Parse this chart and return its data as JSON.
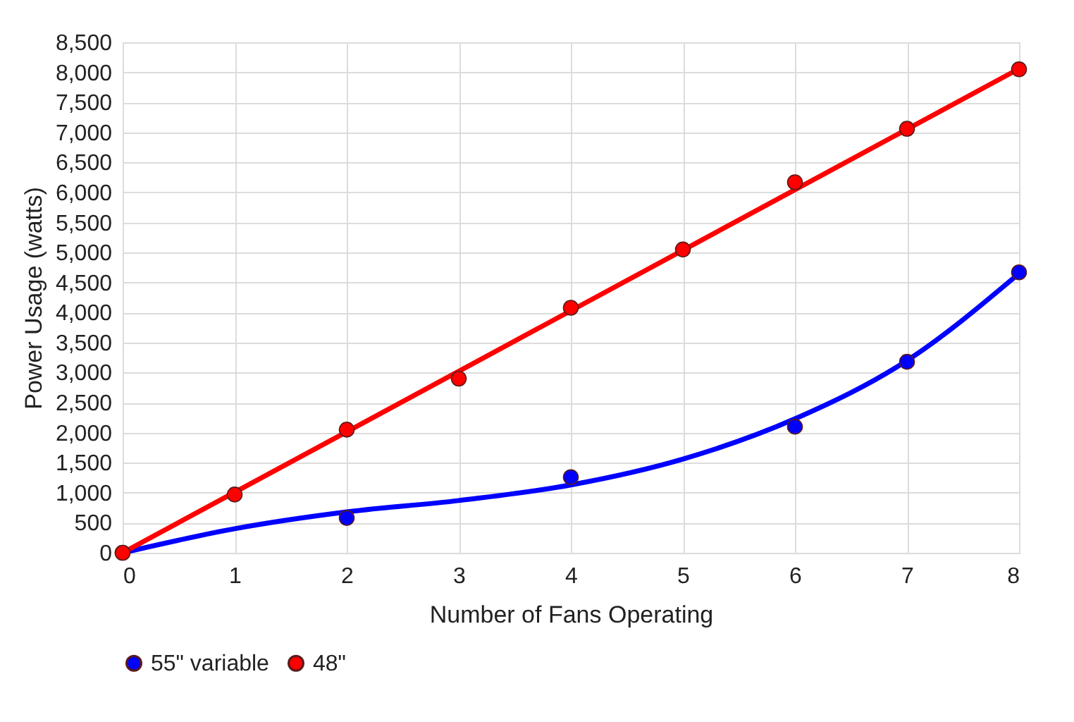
{
  "chart_data": {
    "type": "scatter",
    "xlabel": "Number of Fans Operating",
    "ylabel": "Power Usage (watts)",
    "xlim": [
      0,
      8
    ],
    "xticks": [
      0,
      1,
      2,
      3,
      4,
      5,
      6,
      7,
      8
    ],
    "ylim": [
      0,
      8500
    ],
    "yticks": [
      0,
      500,
      {
        "value": 1000,
        "label": "1,000"
      },
      {
        "value": 1500,
        "label": "1,500"
      },
      {
        "value": 2000,
        "label": "2,000"
      },
      {
        "value": 2500,
        "label": "2,500"
      },
      {
        "value": 3000,
        "label": "3,000"
      },
      {
        "value": 3500,
        "label": "3,500"
      },
      {
        "value": 4000,
        "label": "4,000"
      },
      {
        "value": 4500,
        "label": "4,500"
      },
      {
        "value": 5000,
        "label": "5,000"
      },
      {
        "value": 5500,
        "label": "5,500"
      },
      {
        "value": 6000,
        "label": "6,000"
      },
      {
        "value": 6500,
        "label": "6,500"
      },
      {
        "value": 7000,
        "label": "7,000"
      },
      {
        "value": 7500,
        "label": "7,500"
      },
      {
        "value": 8000,
        "label": "8,000"
      },
      {
        "value": 8500,
        "label": "8,500"
      }
    ],
    "grid": true,
    "legend": "bottom",
    "marker": "circle",
    "series": [
      {
        "type": "line",
        "marker": "none",
        "color": "#0000ff",
        "x": [
          0,
          1,
          2,
          3,
          4,
          5,
          6,
          7,
          8
        ],
        "values": [
          0,
          400,
          680,
          870,
          1130,
          1560,
          2230,
          3200,
          4650
        ]
      },
      {
        "type": "line",
        "marker": "none",
        "color": "#ff0000",
        "x": [
          0,
          8
        ],
        "values": [
          0,
          8060
        ]
      },
      {
        "name": "55\" variable",
        "color": "#0000ff",
        "x": [
          0,
          2,
          4,
          6,
          7,
          8
        ],
        "values": [
          0,
          580,
          1260,
          2100,
          3180,
          4670
        ]
      },
      {
        "name": "48\"",
        "color": "#ff0000",
        "x": [
          0,
          1,
          2,
          3,
          4,
          5,
          6,
          7,
          8
        ],
        "values": [
          0,
          970,
          2050,
          2900,
          4080,
          5050,
          6170,
          7060,
          8050
        ]
      }
    ]
  }
}
